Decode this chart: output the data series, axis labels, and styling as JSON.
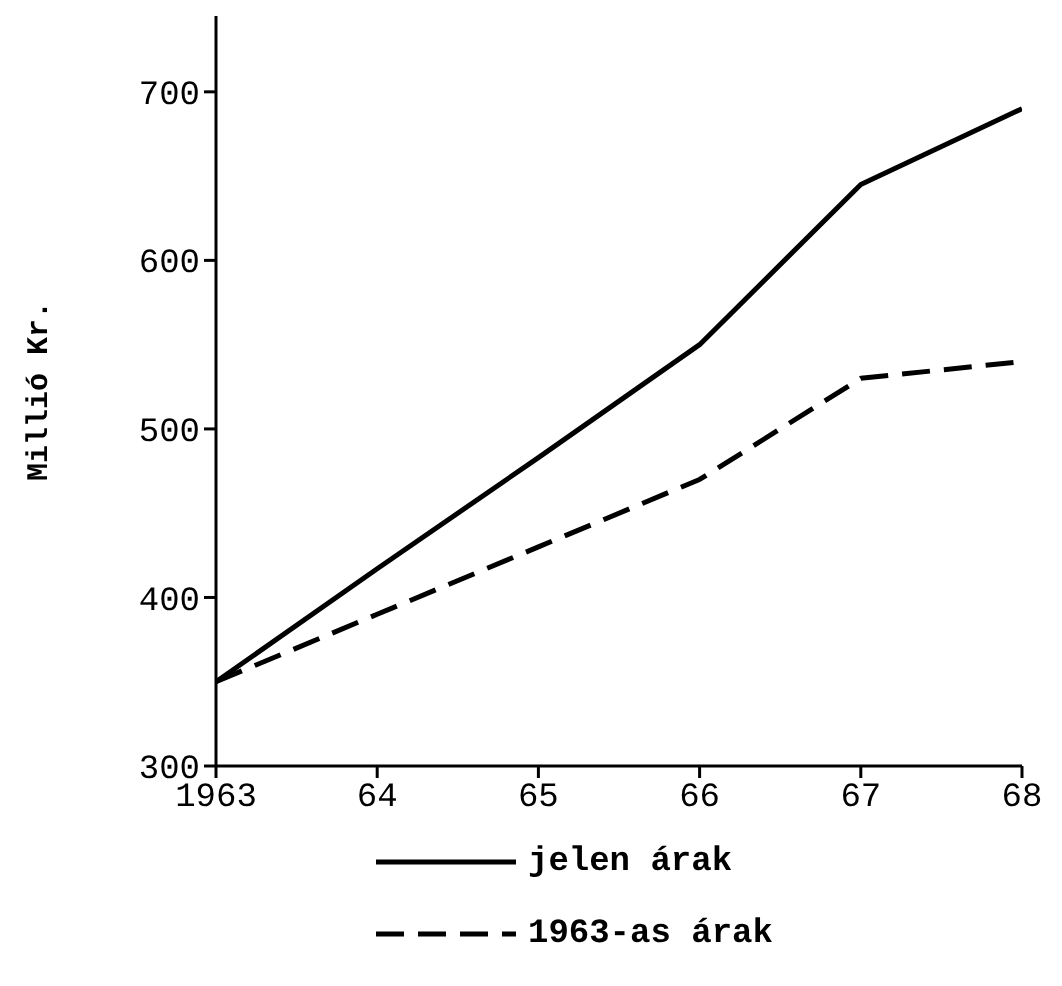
{
  "chart_data": {
    "type": "line",
    "ylabel": "Millió Kr.",
    "x": [
      1963,
      1964,
      1965,
      1966,
      1967,
      1968
    ],
    "xlim": [
      1963,
      1968
    ],
    "xticks": [
      {
        "value": 1963,
        "label": "1963"
      },
      {
        "value": 1964,
        "label": "64"
      },
      {
        "value": 1965,
        "label": "65"
      },
      {
        "value": 1966,
        "label": "66"
      },
      {
        "value": 1967,
        "label": "67"
      },
      {
        "value": 1968,
        "label": "68"
      }
    ],
    "ylim": [
      300,
      745
    ],
    "yticks": [
      300,
      400,
      500,
      600,
      700
    ],
    "legend": "bottom",
    "marker": "none",
    "series": [
      {
        "name": "jelen árak",
        "color": "#000000",
        "line_style": "solid",
        "values": [
          350,
          417,
          483,
          550,
          645,
          690
        ]
      },
      {
        "name": "1963-as árak",
        "color": "#000000",
        "line_style": "dashed",
        "values": [
          350,
          390,
          430,
          470,
          530,
          540
        ]
      }
    ]
  }
}
